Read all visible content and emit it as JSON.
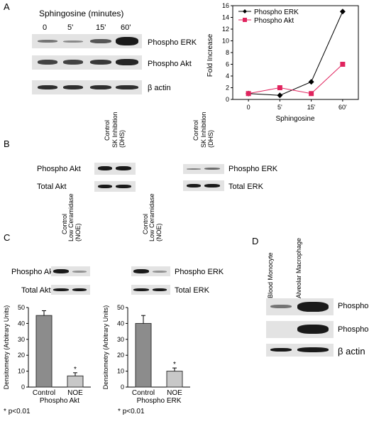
{
  "panel_a": {
    "letter": "A",
    "blot_title": "Sphingosine (minutes)",
    "timepoints": [
      "0",
      "5'",
      "15'",
      "60'"
    ],
    "rows": [
      "Phospho ERK",
      "Phospho Akt",
      "β actin"
    ],
    "band_intensity": {
      "Phospho ERK": [
        0.55,
        0.45,
        0.7,
        1.0
      ],
      "Phospho Akt": [
        0.8,
        0.8,
        0.85,
        0.95
      ],
      "β actin": [
        0.9,
        0.9,
        0.9,
        0.9
      ]
    }
  },
  "chart_data": {
    "type": "line",
    "x": [
      "0",
      "5'",
      "15'",
      "60'"
    ],
    "xlabel": "Sphingosine",
    "ylabel": "Fold Increase",
    "ylim": [
      0,
      16
    ],
    "yticks": [
      "0",
      "2",
      "4",
      "6",
      "8",
      "10",
      "12",
      "14",
      "16"
    ],
    "legend_position": "top-left",
    "series": [
      {
        "name": "Phospho ERK",
        "values": [
          1,
          0.7,
          3,
          15
        ],
        "color": "#000000",
        "marker": "diamond"
      },
      {
        "name": "Phospho Akt",
        "values": [
          1,
          2,
          1,
          6
        ],
        "color": "#e0245e",
        "marker": "square"
      }
    ]
  },
  "panel_b": {
    "letter": "B",
    "left": {
      "lanes": [
        "Control",
        "SK Inhibition (DHS)"
      ],
      "rows": [
        "Phospho Akt",
        "Total Akt"
      ]
    },
    "right": {
      "lanes": [
        "Control",
        "SK Inhibition (DHS)"
      ],
      "rows": [
        "Phospho ERK",
        "Total ERK"
      ]
    }
  },
  "panel_c": {
    "letter": "C",
    "left": {
      "lanes": [
        "Control",
        "Low Ceramidase (NOE)"
      ],
      "rows": [
        "Phospho Akt",
        "Total Akt"
      ],
      "bar_chart": {
        "ylabel": "Densitometry (Arbitrary Units)",
        "ylim": [
          0,
          50
        ],
        "yticks": [
          "0",
          "10",
          "20",
          "30",
          "40",
          "50"
        ],
        "categories": [
          "Control",
          "NOE"
        ],
        "values": [
          45,
          7
        ],
        "errors": [
          3,
          2
        ],
        "significance": [
          "",
          "*"
        ],
        "xlabel": "Phospho Akt"
      }
    },
    "right": {
      "lanes": [
        "Control",
        "Low Ceramidase (NOE)"
      ],
      "rows": [
        "Phospho ERK",
        "Total ERK"
      ],
      "bar_chart": {
        "ylabel": "Densitometry (Arbitrary Units)",
        "ylim": [
          0,
          50
        ],
        "yticks": [
          "0",
          "10",
          "20",
          "30",
          "40",
          "50"
        ],
        "categories": [
          "Control",
          "NOE"
        ],
        "values": [
          40,
          10
        ],
        "errors": [
          5,
          2
        ],
        "significance": [
          "",
          "*"
        ],
        "xlabel": "Phospho ERK"
      }
    },
    "footnote_left": "p<0.01",
    "footnote_right": "p<0.01",
    "footnote_marker": "*"
  },
  "panel_d": {
    "letter": "D",
    "lanes": [
      "Blood Monocyte",
      "Alveolar Macrophage"
    ],
    "rows": [
      "Phospho ERK",
      "Phospho Akt",
      "β actin"
    ]
  }
}
